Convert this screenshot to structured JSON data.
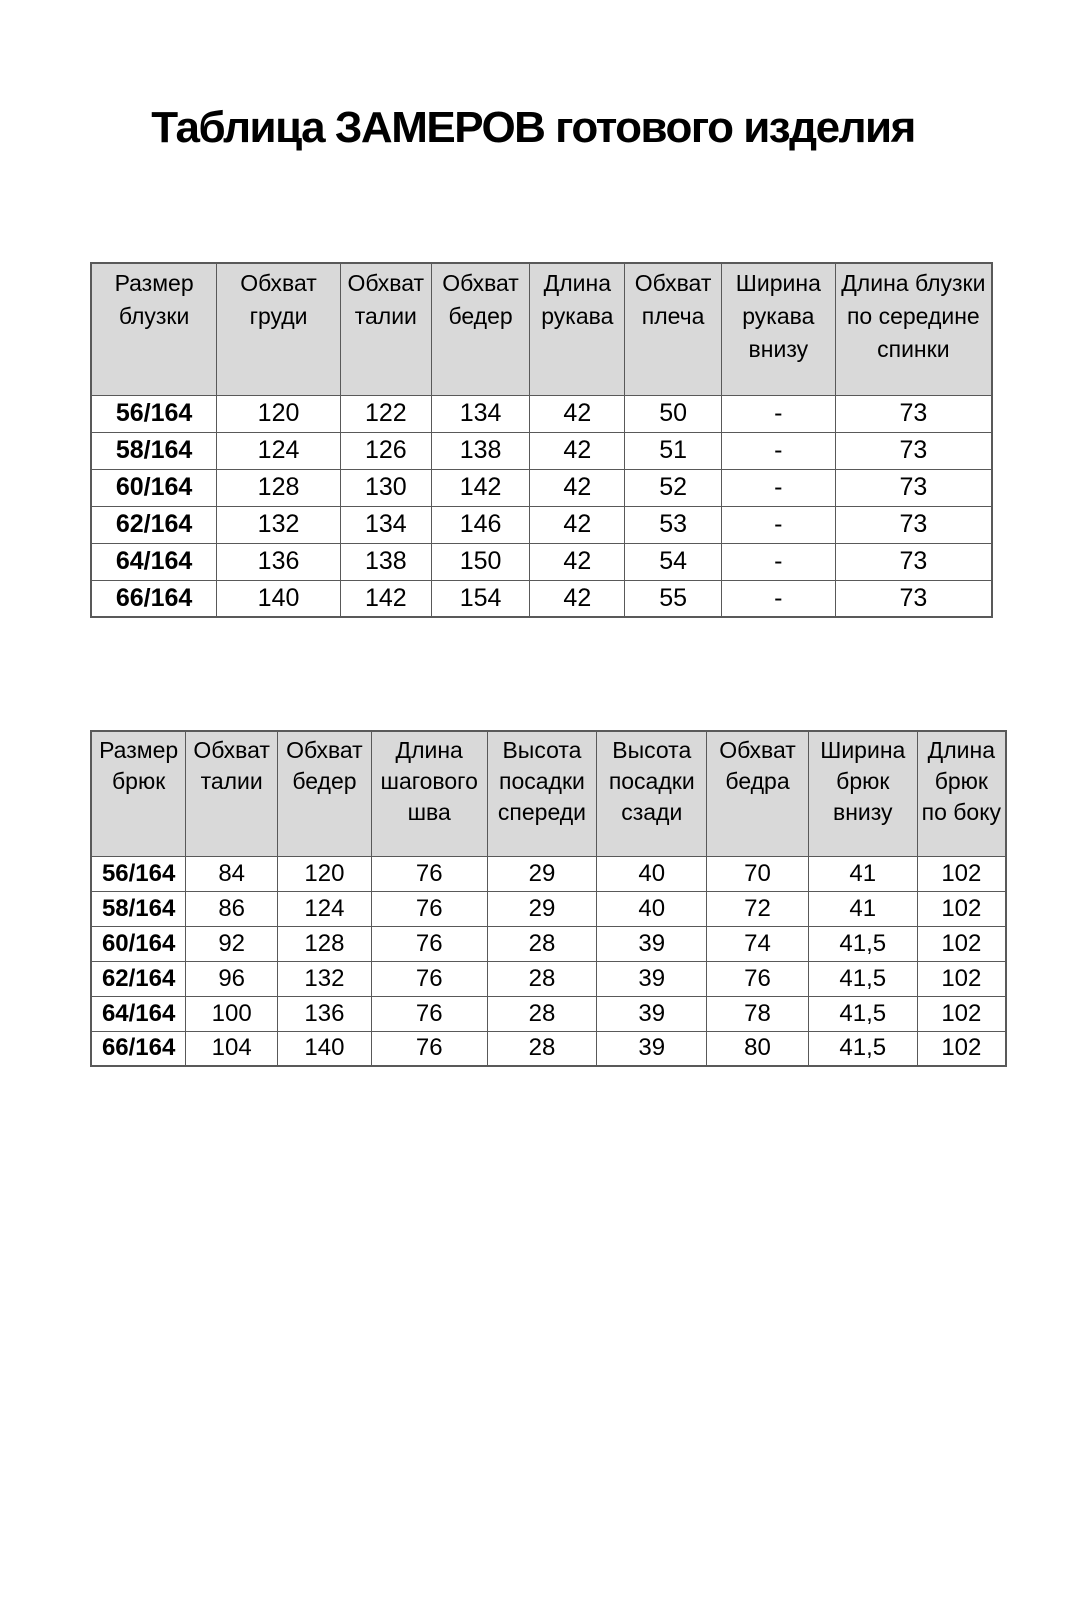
{
  "title": "Таблица ЗАМЕРОВ готового изделия",
  "blouse_table": {
    "headers": [
      "Размер блузки",
      "Обхват груди",
      "Обхват талии",
      "Обхват бедер",
      "Длина рукава",
      "Обхват плеча",
      "Ширина рукава внизу",
      "Длина блузки по середине спинки"
    ],
    "rows": [
      [
        "56/164",
        "120",
        "122",
        "134",
        "42",
        "50",
        "-",
        "73"
      ],
      [
        "58/164",
        "124",
        "126",
        "138",
        "42",
        "51",
        "-",
        "73"
      ],
      [
        "60/164",
        "128",
        "130",
        "142",
        "42",
        "52",
        "-",
        "73"
      ],
      [
        "62/164",
        "132",
        "134",
        "146",
        "42",
        "53",
        "-",
        "73"
      ],
      [
        "64/164",
        "136",
        "138",
        "150",
        "42",
        "54",
        "-",
        "73"
      ],
      [
        "66/164",
        "140",
        "142",
        "154",
        "42",
        "55",
        "-",
        "73"
      ]
    ]
  },
  "trousers_table": {
    "headers": [
      "Размер брюк",
      "Обхват талии",
      "Обхват бедер",
      "Длина шагового шва",
      "Высота посадки спереди",
      "Высота посадки сзади",
      "Обхват бедра",
      "Ширина брюк внизу",
      "Длина брюк по боку"
    ],
    "rows": [
      [
        "56/164",
        "84",
        "120",
        "76",
        "29",
        "40",
        "70",
        "41",
        "102"
      ],
      [
        "58/164",
        "86",
        "124",
        "76",
        "29",
        "40",
        "72",
        "41",
        "102"
      ],
      [
        "60/164",
        "92",
        "128",
        "76",
        "28",
        "39",
        "74",
        "41,5",
        "102"
      ],
      [
        "62/164",
        "96",
        "132",
        "76",
        "28",
        "39",
        "76",
        "41,5",
        "102"
      ],
      [
        "64/164",
        "100",
        "136",
        "76",
        "28",
        "39",
        "78",
        "41,5",
        "102"
      ],
      [
        "66/164",
        "104",
        "140",
        "76",
        "28",
        "39",
        "80",
        "41,5",
        "102"
      ]
    ]
  },
  "colors": {
    "header_bg": "#d9d9d9",
    "border": "#595959",
    "text": "#000000",
    "page_bg": "#ffffff"
  }
}
